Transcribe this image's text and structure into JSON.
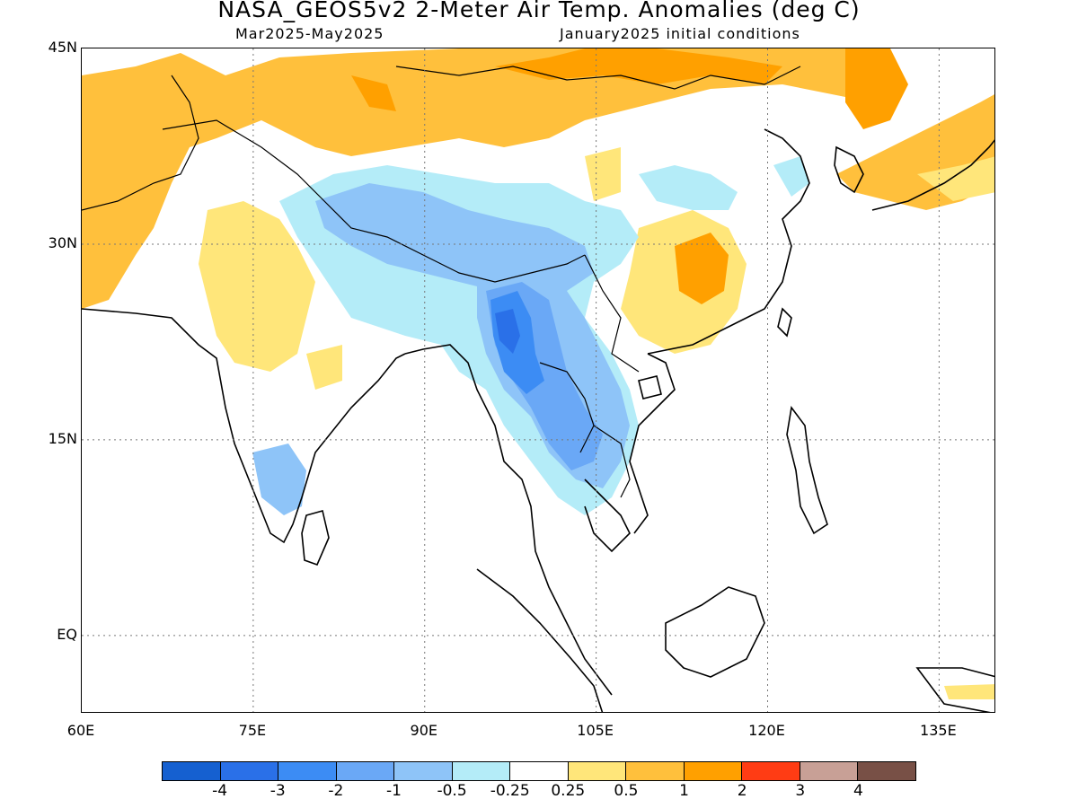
{
  "title": "NASA_GEOS5v2 2-Meter Air Temp. Anomalies (deg C)",
  "subtitle_left": "Mar2025-May2025",
  "subtitle_right": "January2025 initial conditions",
  "map": {
    "lon_range": [
      60,
      140
    ],
    "lat_range": [
      -6,
      45
    ],
    "lat_labels": [
      "45N",
      "30N",
      "15N",
      "EQ"
    ],
    "lon_labels": [
      "60E",
      "75E",
      "90E",
      "105E",
      "120E",
      "135E"
    ],
    "grid": "dotted"
  },
  "colorbar": {
    "colors": [
      "#1560d0",
      "#2a70e8",
      "#3c8cf4",
      "#6aa8f6",
      "#8ec4f8",
      "#b4ecf8",
      "#ffffff",
      "#ffe67a",
      "#ffc03c",
      "#ffa000",
      "#ff3c14",
      "#c8a096",
      "#785046"
    ],
    "labels": [
      "-4",
      "-3",
      "-2",
      "-1",
      "-0.5",
      "-0.25",
      "0.25",
      "0.5",
      "1",
      "2",
      "3",
      "4"
    ]
  }
}
